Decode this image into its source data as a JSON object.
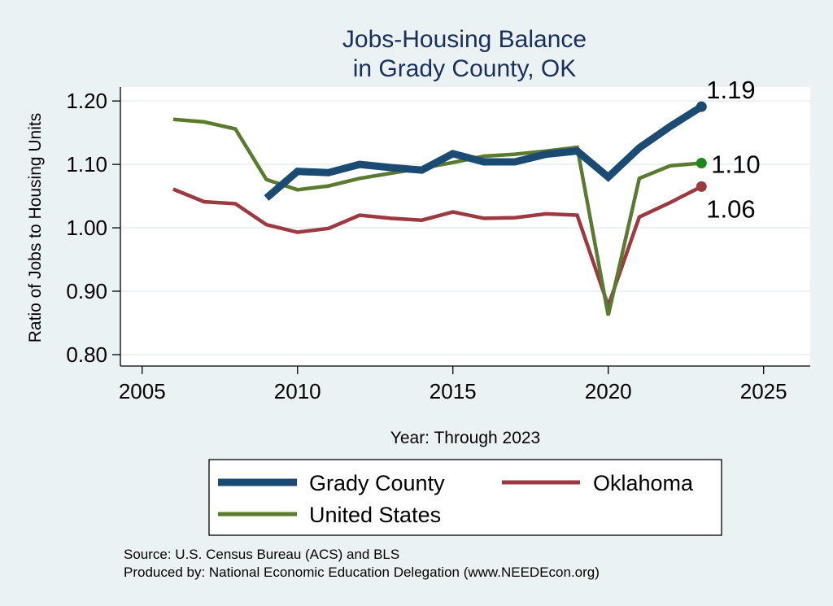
{
  "chart_data": {
    "type": "line",
    "title": [
      "Jobs-Housing Balance",
      "in Grady County, OK"
    ],
    "xlabel": "Year: Through 2023",
    "ylabel": "Ratio of Jobs to Housing Units",
    "xlim": [
      2004.3,
      2026.5
    ],
    "ylim": [
      0.782,
      1.222
    ],
    "x_ticks": [
      2005,
      2010,
      2015,
      2020,
      2025
    ],
    "x_tick_labels": [
      "2005",
      "2010",
      "2015",
      "2020",
      "2025"
    ],
    "y_ticks": [
      0.8,
      0.9,
      1.0,
      1.1,
      1.2
    ],
    "y_tick_labels": [
      "0.80",
      "0.90",
      "1.00",
      "1.10",
      "1.20"
    ],
    "grid": "horizontal",
    "legend_position": "bottom",
    "series": [
      {
        "name": "Grady County",
        "color": "#1b4a72",
        "end_label": "1.19",
        "x": [
          2009,
          2010,
          2011,
          2012,
          2013,
          2014,
          2015,
          2016,
          2017,
          2018,
          2019,
          2020,
          2021,
          2022,
          2023
        ],
        "y": [
          1.047,
          1.089,
          1.087,
          1.1,
          1.095,
          1.091,
          1.117,
          1.104,
          1.104,
          1.116,
          1.121,
          1.08,
          1.126,
          1.16,
          1.191
        ]
      },
      {
        "name": "Oklahoma",
        "color": "#9b3a40",
        "end_label": "1.06",
        "x": [
          2006,
          2007,
          2008,
          2009,
          2010,
          2011,
          2012,
          2013,
          2014,
          2015,
          2016,
          2017,
          2018,
          2019,
          2020,
          2021,
          2022,
          2023
        ],
        "y": [
          1.061,
          1.041,
          1.038,
          1.005,
          0.993,
          0.999,
          1.02,
          1.015,
          1.012,
          1.025,
          1.015,
          1.016,
          1.022,
          1.02,
          0.877,
          1.017,
          1.04,
          1.065
        ]
      },
      {
        "name": "United States",
        "color": "#5a7a30",
        "end_label": "1.10",
        "x": [
          2006,
          2007,
          2008,
          2009,
          2010,
          2011,
          2012,
          2013,
          2014,
          2015,
          2016,
          2017,
          2018,
          2019,
          2020,
          2021,
          2022,
          2023
        ],
        "y": [
          1.171,
          1.167,
          1.156,
          1.076,
          1.06,
          1.066,
          1.078,
          1.086,
          1.094,
          1.103,
          1.113,
          1.116,
          1.121,
          1.127,
          0.862,
          1.078,
          1.098,
          1.102
        ]
      }
    ],
    "source_lines": [
      "Source: U.S. Census Bureau (ACS) and BLS",
      "Produced by: National Economic Education Delegation (www.NEEDEcon.org)"
    ]
  }
}
